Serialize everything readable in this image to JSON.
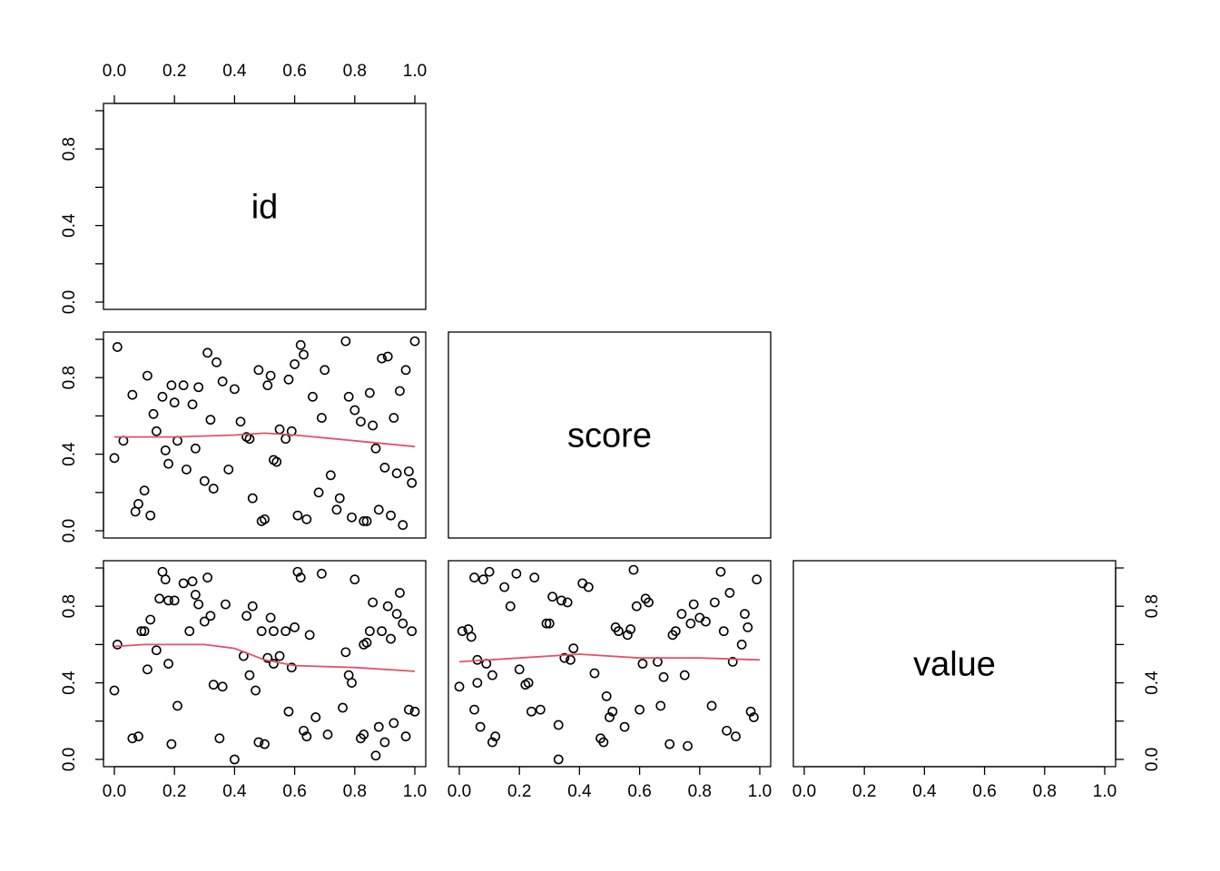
{
  "chart_data": {
    "type": "scatter",
    "variables": [
      "id",
      "score",
      "value"
    ],
    "layout": "lower-triangle pairs matrix",
    "axis_range": [
      0,
      1
    ],
    "ticks": [
      0.0,
      0.2,
      0.4,
      0.6,
      0.8,
      1.0
    ],
    "tick_labels": [
      "0.0",
      "0.2",
      "0.4",
      "0.6",
      "0.8",
      "1.0"
    ],
    "point_color": "#000000",
    "smooth_color": "#DF536B",
    "panels": [
      {
        "row": "score",
        "col": "id",
        "x": [
          0.0,
          0.01,
          0.03,
          0.06,
          0.08,
          0.1,
          0.11,
          0.12,
          0.14,
          0.16,
          0.17,
          0.18,
          0.19,
          0.2,
          0.21,
          0.23,
          0.24,
          0.27,
          0.28,
          0.3,
          0.31,
          0.32,
          0.34,
          0.36,
          0.38,
          0.4,
          0.42,
          0.44,
          0.46,
          0.48,
          0.49,
          0.5,
          0.51,
          0.52,
          0.53,
          0.55,
          0.57,
          0.58,
          0.59,
          0.6,
          0.61,
          0.62,
          0.63,
          0.64,
          0.66,
          0.68,
          0.7,
          0.72,
          0.74,
          0.75,
          0.77,
          0.79,
          0.8,
          0.82,
          0.83,
          0.84,
          0.85,
          0.86,
          0.88,
          0.89,
          0.9,
          0.91,
          0.92,
          0.93,
          0.94,
          0.95,
          0.96,
          0.97,
          0.98,
          0.99,
          1.0,
          0.07,
          0.13,
          0.26,
          0.33,
          0.45,
          0.54,
          0.69,
          0.78,
          0.87
        ],
        "y": [
          0.38,
          0.96,
          0.47,
          0.71,
          0.14,
          0.21,
          0.81,
          0.08,
          0.52,
          0.7,
          0.42,
          0.35,
          0.76,
          0.67,
          0.47,
          0.76,
          0.32,
          0.43,
          0.75,
          0.26,
          0.93,
          0.58,
          0.88,
          0.78,
          0.32,
          0.74,
          0.57,
          0.49,
          0.17,
          0.84,
          0.05,
          0.06,
          0.76,
          0.81,
          0.37,
          0.53,
          0.48,
          0.79,
          0.52,
          0.87,
          0.08,
          0.97,
          0.92,
          0.06,
          0.7,
          0.2,
          0.84,
          0.29,
          0.11,
          0.17,
          0.99,
          0.07,
          0.63,
          0.57,
          0.05,
          0.05,
          0.72,
          0.55,
          0.11,
          0.9,
          0.33,
          0.91,
          0.08,
          0.59,
          0.3,
          0.73,
          0.03,
          0.84,
          0.31,
          0.25,
          0.99,
          0.1,
          0.61,
          0.66,
          0.22,
          0.48,
          0.36,
          0.59,
          0.7,
          0.43
        ],
        "smooth_x": [
          0.0,
          0.2,
          0.4,
          0.5,
          0.6,
          0.8,
          1.0
        ],
        "smooth_y": [
          0.49,
          0.49,
          0.5,
          0.51,
          0.5,
          0.47,
          0.44
        ]
      },
      {
        "row": "value",
        "col": "id",
        "x": [
          0.0,
          0.01,
          0.06,
          0.09,
          0.1,
          0.11,
          0.12,
          0.14,
          0.16,
          0.17,
          0.18,
          0.19,
          0.2,
          0.21,
          0.23,
          0.25,
          0.27,
          0.28,
          0.3,
          0.31,
          0.32,
          0.33,
          0.35,
          0.37,
          0.4,
          0.43,
          0.44,
          0.45,
          0.46,
          0.48,
          0.49,
          0.5,
          0.51,
          0.52,
          0.53,
          0.55,
          0.57,
          0.58,
          0.59,
          0.6,
          0.61,
          0.62,
          0.63,
          0.64,
          0.67,
          0.69,
          0.71,
          0.76,
          0.78,
          0.79,
          0.8,
          0.82,
          0.83,
          0.84,
          0.85,
          0.86,
          0.87,
          0.88,
          0.89,
          0.9,
          0.91,
          0.92,
          0.93,
          0.95,
          0.96,
          0.97,
          0.98,
          1.0,
          0.08,
          0.15,
          0.18,
          0.26,
          0.36,
          0.47,
          0.53,
          0.65,
          0.77,
          0.83,
          0.94,
          0.99
        ],
        "y": [
          0.36,
          0.6,
          0.11,
          0.67,
          0.67,
          0.47,
          0.73,
          0.57,
          0.98,
          0.94,
          0.83,
          0.08,
          0.83,
          0.28,
          0.92,
          0.67,
          0.86,
          0.81,
          0.72,
          0.95,
          0.75,
          0.39,
          0.11,
          0.81,
          0.0,
          0.54,
          0.75,
          0.44,
          0.8,
          0.09,
          0.67,
          0.08,
          0.53,
          0.74,
          0.5,
          0.54,
          0.67,
          0.25,
          0.48,
          0.69,
          0.98,
          0.95,
          0.15,
          0.12,
          0.22,
          0.97,
          0.13,
          0.27,
          0.44,
          0.4,
          0.94,
          0.11,
          0.13,
          0.61,
          0.67,
          0.82,
          0.02,
          0.17,
          0.67,
          0.09,
          0.8,
          0.63,
          0.19,
          0.87,
          0.71,
          0.12,
          0.26,
          0.25,
          0.12,
          0.84,
          0.5,
          0.93,
          0.38,
          0.36,
          0.67,
          0.65,
          0.56,
          0.6,
          0.76,
          0.67
        ],
        "smooth_x": [
          0.0,
          0.1,
          0.3,
          0.4,
          0.5,
          0.6,
          0.8,
          1.0
        ],
        "smooth_y": [
          0.59,
          0.6,
          0.6,
          0.58,
          0.52,
          0.49,
          0.48,
          0.46
        ]
      },
      {
        "row": "value",
        "col": "score",
        "x": [
          0.0,
          0.01,
          0.03,
          0.05,
          0.06,
          0.07,
          0.08,
          0.09,
          0.1,
          0.11,
          0.12,
          0.15,
          0.17,
          0.19,
          0.2,
          0.22,
          0.24,
          0.25,
          0.27,
          0.29,
          0.3,
          0.31,
          0.33,
          0.34,
          0.35,
          0.37,
          0.38,
          0.41,
          0.43,
          0.45,
          0.47,
          0.48,
          0.5,
          0.51,
          0.52,
          0.53,
          0.55,
          0.57,
          0.58,
          0.59,
          0.6,
          0.62,
          0.63,
          0.66,
          0.67,
          0.7,
          0.71,
          0.72,
          0.74,
          0.75,
          0.77,
          0.78,
          0.8,
          0.82,
          0.84,
          0.85,
          0.87,
          0.89,
          0.9,
          0.91,
          0.92,
          0.94,
          0.95,
          0.97,
          0.98,
          0.99,
          0.04,
          0.06,
          0.11,
          0.23,
          0.36,
          0.49,
          0.56,
          0.68,
          0.76,
          0.88,
          0.96,
          0.05,
          0.33,
          0.61
        ],
        "y": [
          0.38,
          0.67,
          0.68,
          0.95,
          0.52,
          0.17,
          0.94,
          0.5,
          0.98,
          0.44,
          0.12,
          0.9,
          0.8,
          0.97,
          0.47,
          0.39,
          0.25,
          0.95,
          0.26,
          0.71,
          0.71,
          0.85,
          0.18,
          0.83,
          0.53,
          0.52,
          0.58,
          0.92,
          0.9,
          0.45,
          0.11,
          0.09,
          0.22,
          0.25,
          0.69,
          0.67,
          0.17,
          0.68,
          0.99,
          0.8,
          0.26,
          0.84,
          0.82,
          0.51,
          0.28,
          0.08,
          0.65,
          0.67,
          0.76,
          0.44,
          0.71,
          0.81,
          0.74,
          0.72,
          0.28,
          0.82,
          0.98,
          0.15,
          0.87,
          0.51,
          0.12,
          0.6,
          0.76,
          0.25,
          0.22,
          0.94,
          0.64,
          0.4,
          0.09,
          0.4,
          0.82,
          0.33,
          0.65,
          0.43,
          0.07,
          0.67,
          0.69,
          0.26,
          0.0,
          0.5
        ],
        "smooth_x": [
          0.0,
          0.2,
          0.4,
          0.6,
          0.8,
          1.0
        ],
        "smooth_y": [
          0.51,
          0.53,
          0.55,
          0.53,
          0.53,
          0.52
        ]
      }
    ]
  }
}
